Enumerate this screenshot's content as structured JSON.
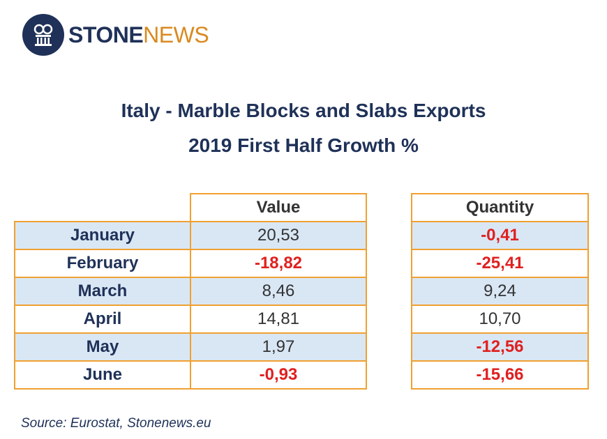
{
  "logo": {
    "part1": "STONE",
    "part2": "NEWS"
  },
  "title_line1": "Italy - Marble Blocks and Slabs Exports",
  "title_line2": "2019 First Half Growth %",
  "chart_data": {
    "type": "table",
    "columns": [
      "Value",
      "Quantity"
    ],
    "rows": [
      {
        "month": "January",
        "value": "20,53",
        "quantity": "-0,41"
      },
      {
        "month": "February",
        "value": "-18,82",
        "quantity": "-25,41"
      },
      {
        "month": "March",
        "value": "8,46",
        "quantity": "9,24"
      },
      {
        "month": "April",
        "value": "14,81",
        "quantity": "10,70"
      },
      {
        "month": "May",
        "value": "1,97",
        "quantity": "-12,56"
      },
      {
        "month": "June",
        "value": "-0,93",
        "quantity": "-15,66"
      }
    ],
    "negative_color": "#e02020"
  },
  "source": "Source: Eurostat, Stonenews.eu"
}
